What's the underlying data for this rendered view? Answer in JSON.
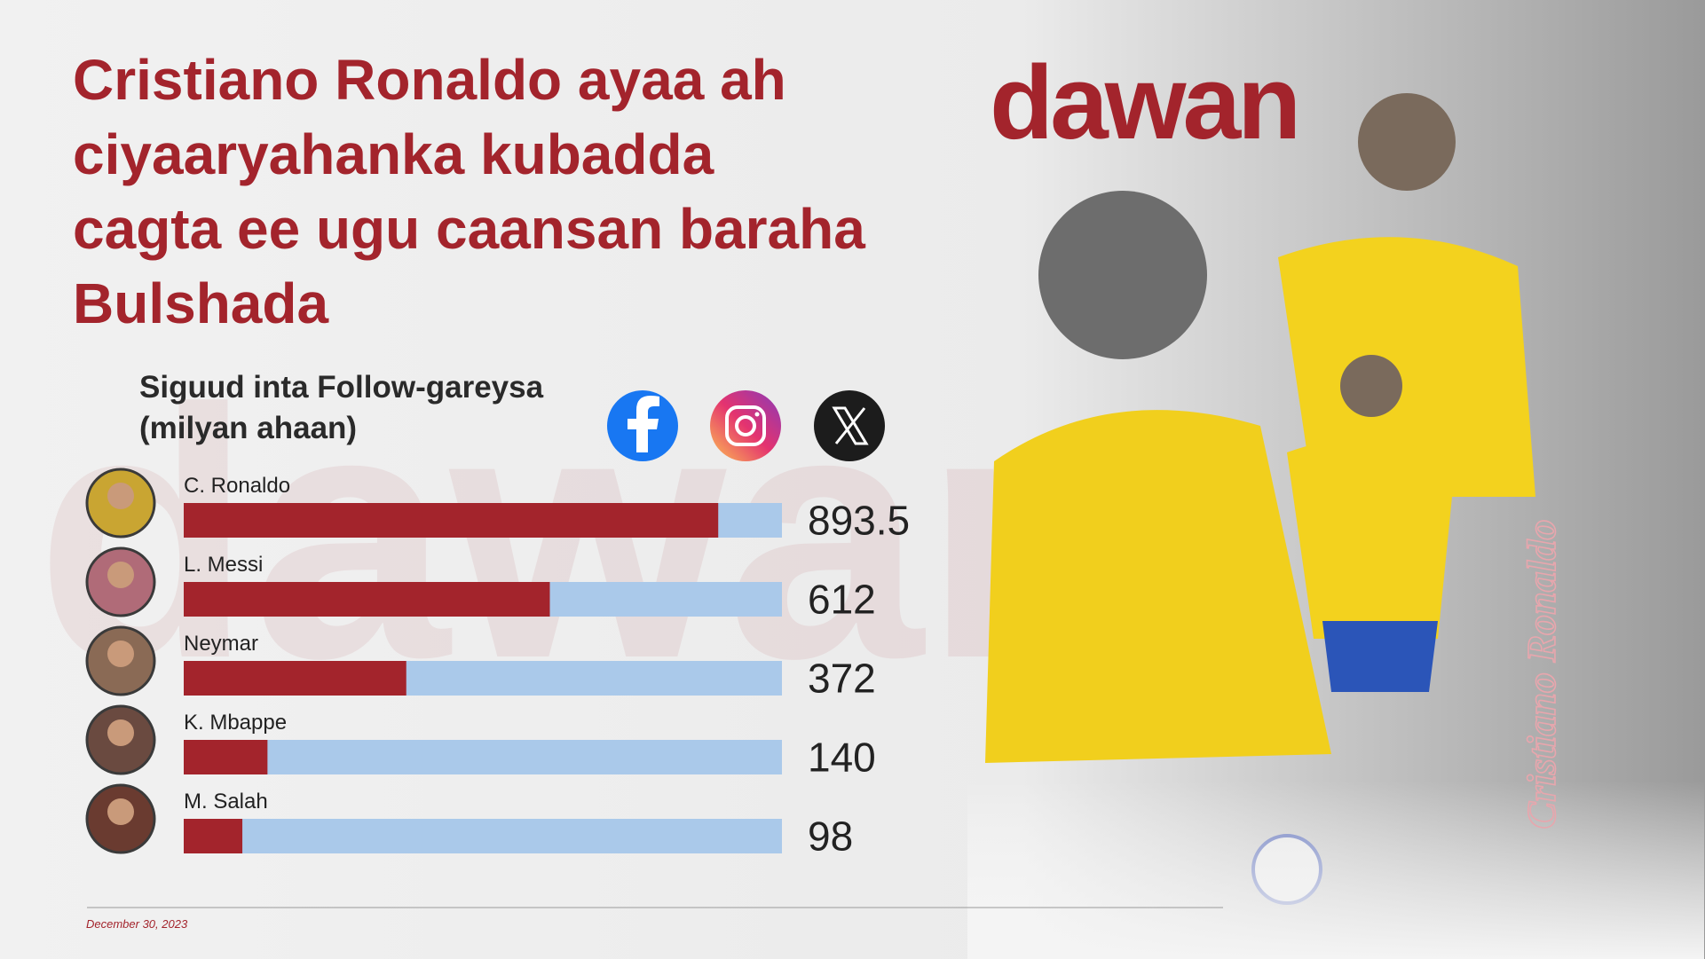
{
  "brand": "dawan",
  "caption": "Cristiano Ronaldo",
  "date": "December 30, 2023",
  "chart_data": {
    "type": "bar",
    "orientation": "horizontal",
    "title": "Cristiano Ronaldo ayaa ah ciyaaryahanka kubadda cagta ee ugu caansan baraha Bulshada",
    "subtitle": "Siguud inta Follow-gareysa (milyan ahaan)",
    "categories": [
      "C. Ronaldo",
      "L. Messi",
      "Neymar",
      "K. Mbappe",
      "M. Salah"
    ],
    "values": [
      893.5,
      612,
      372,
      140,
      98
    ],
    "color": "#a3242c",
    "track_color": "#aac9ea",
    "xlim": [
      0,
      1000
    ]
  }
}
